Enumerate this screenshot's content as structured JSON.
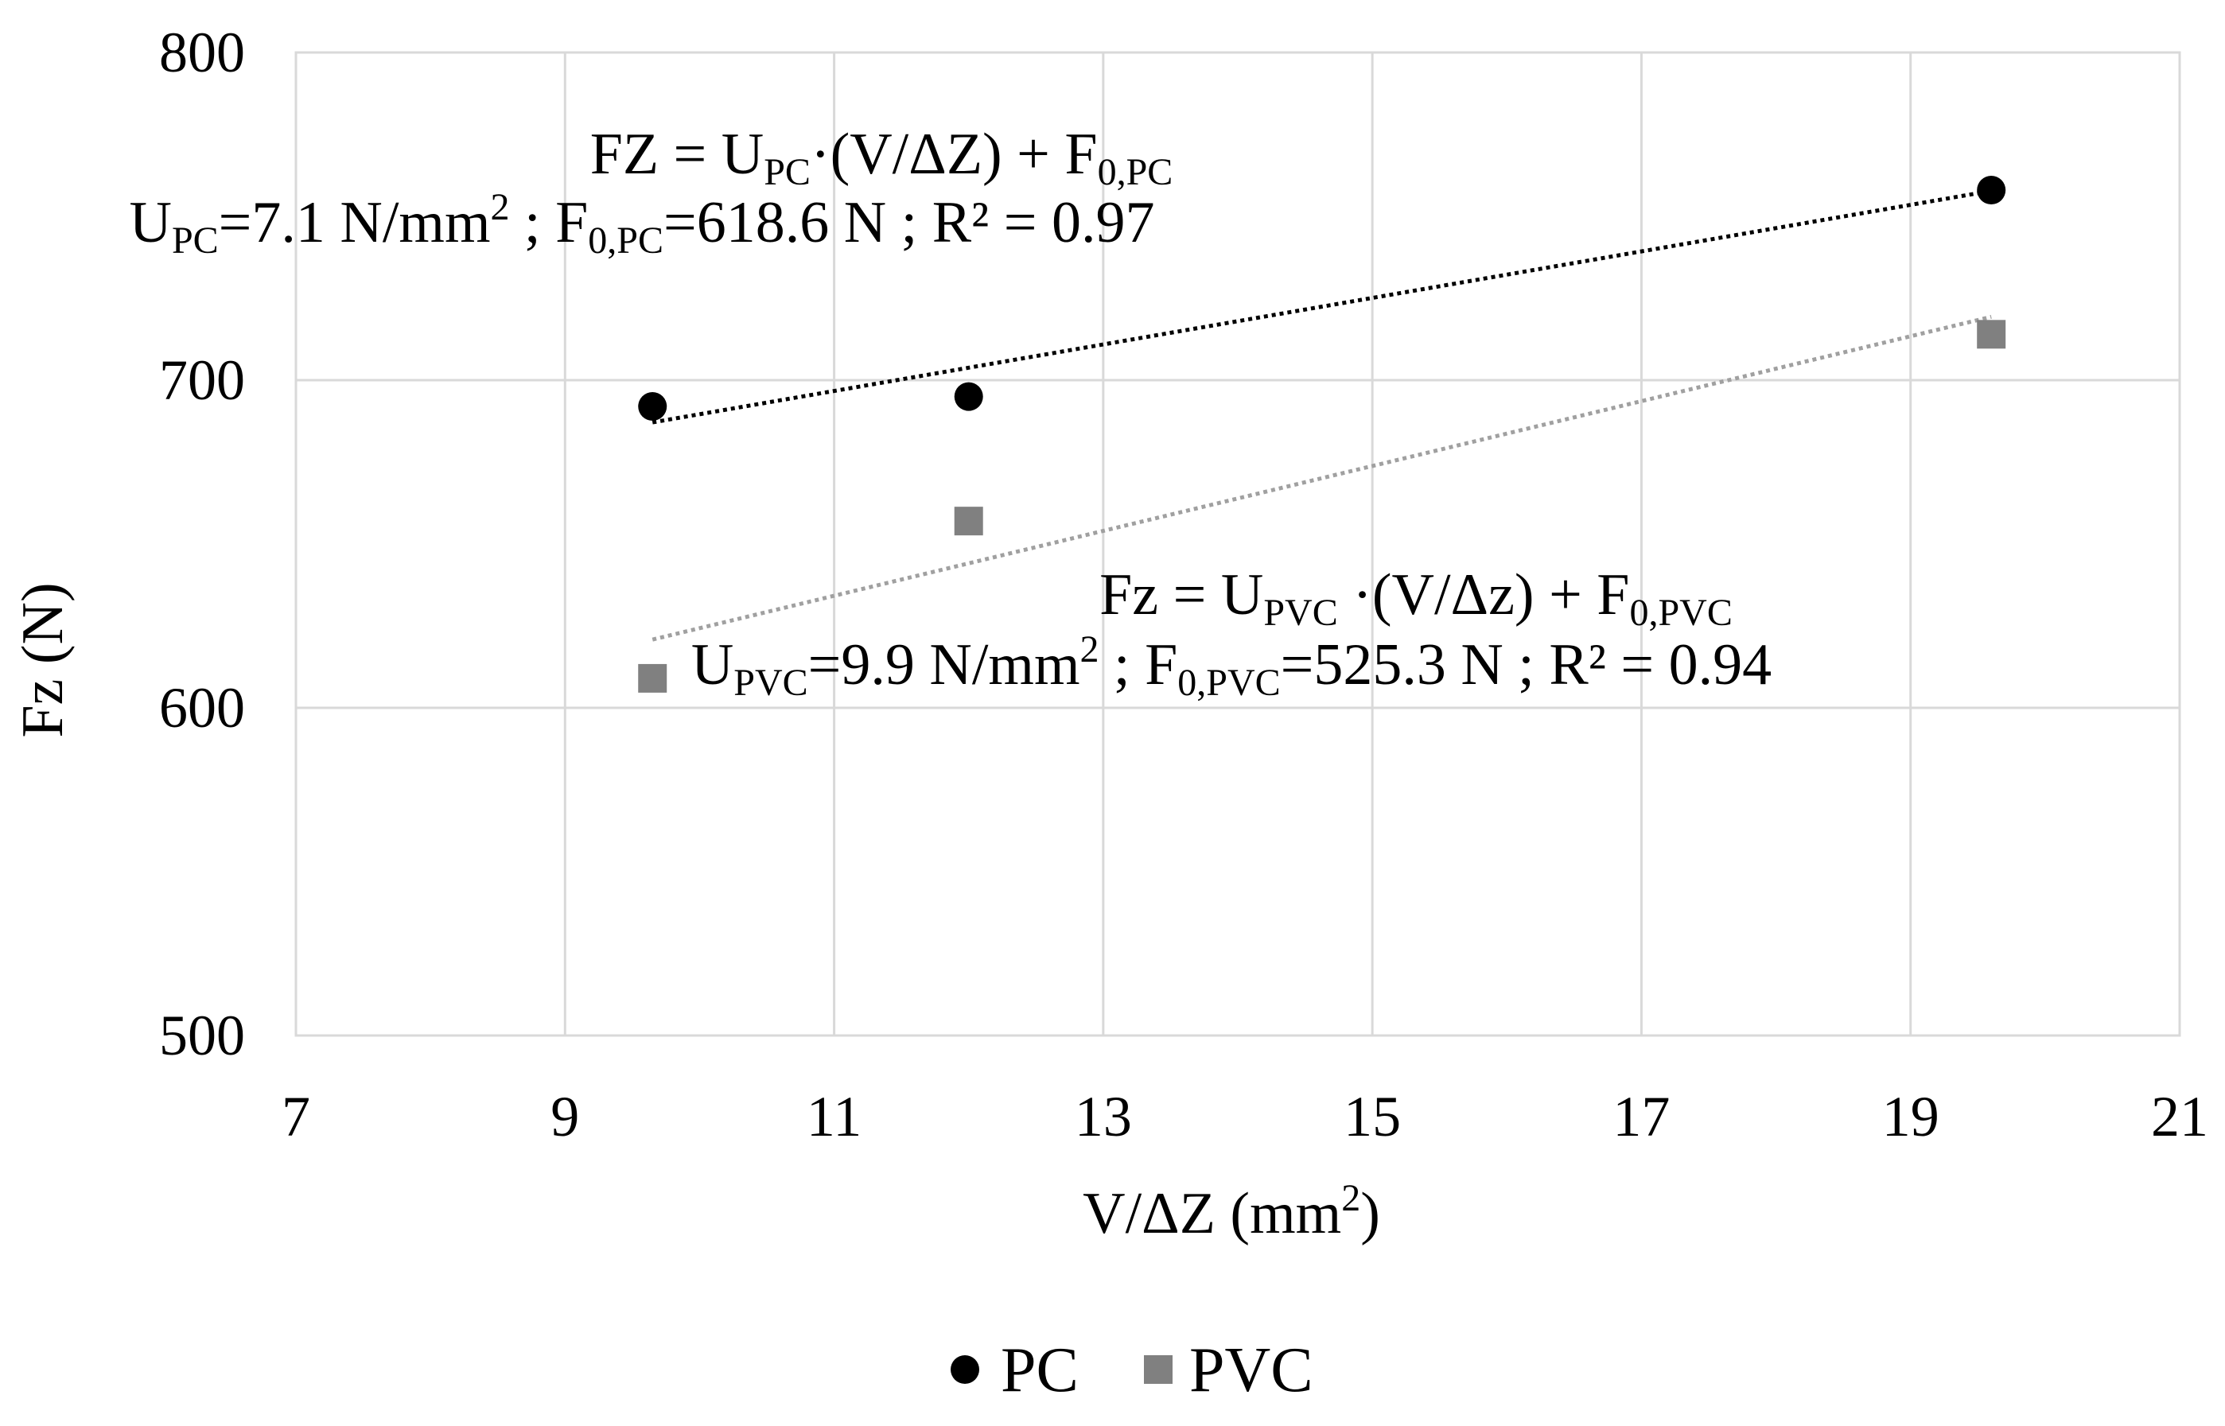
{
  "chart_data": {
    "type": "scatter",
    "title": "",
    "xlabel": "V/ΔZ (mm",
    "xlabel_sup": "2",
    "xlabel_end": ")",
    "ylabel": "Fz (N)",
    "xlim": [
      7,
      21
    ],
    "ylim": [
      500,
      800
    ],
    "xticks": [
      7,
      9,
      11,
      13,
      15,
      17,
      19,
      21
    ],
    "yticks": [
      500,
      600,
      700,
      800
    ],
    "grid": true,
    "legend_position": "bottom-center",
    "series": [
      {
        "name": "PC",
        "marker": "circle",
        "color": "#000000",
        "x": [
          9.65,
          12.0,
          19.6
        ],
        "y": [
          692,
          695,
          758
        ],
        "trendline": {
          "slope": 7.1,
          "intercept": 618.6,
          "r2": 0.97,
          "color": "#000000"
        }
      },
      {
        "name": "PVC",
        "marker": "square",
        "color": "#808080",
        "x": [
          9.65,
          12.0,
          19.6
        ],
        "y": [
          609,
          657,
          714
        ],
        "trendline": {
          "slope": 9.9,
          "intercept": 525.3,
          "r2": 0.94,
          "color": "#a0a0a0"
        }
      }
    ],
    "annotations": [
      {
        "id": "pc-eq",
        "line1": [
          {
            "t": "FZ = U"
          },
          {
            "t": "PC",
            "s": "sub"
          },
          {
            "t": "·(V/ΔZ) + F"
          },
          {
            "t": "0,PC",
            "s": "sub"
          }
        ],
        "line2": [
          {
            "t": "U"
          },
          {
            "t": "PC",
            "s": "sub"
          },
          {
            "t": "=7.1 N/mm"
          },
          {
            "t": "2",
            "s": "sup"
          },
          {
            "t": " ; F"
          },
          {
            "t": "0,PC",
            "s": "sub"
          },
          {
            "t": "=618.6 N ; R² = 0.97"
          }
        ]
      },
      {
        "id": "pvc-eq",
        "line1": [
          {
            "t": "Fz = U"
          },
          {
            "t": "PVC",
            "s": "sub"
          },
          {
            "t": " ·(V/Δz)  + F"
          },
          {
            "t": "0,PVC",
            "s": "sub"
          }
        ],
        "line2": [
          {
            "t": "U"
          },
          {
            "t": "PVC",
            "s": "sub"
          },
          {
            "t": "=9.9 N/mm"
          },
          {
            "t": "2",
            "s": "sup"
          },
          {
            "t": " ; F"
          },
          {
            "t": "0,PVC",
            "s": "sub"
          },
          {
            "t": "=525.3 N  ; R² = 0.94"
          }
        ]
      }
    ]
  }
}
